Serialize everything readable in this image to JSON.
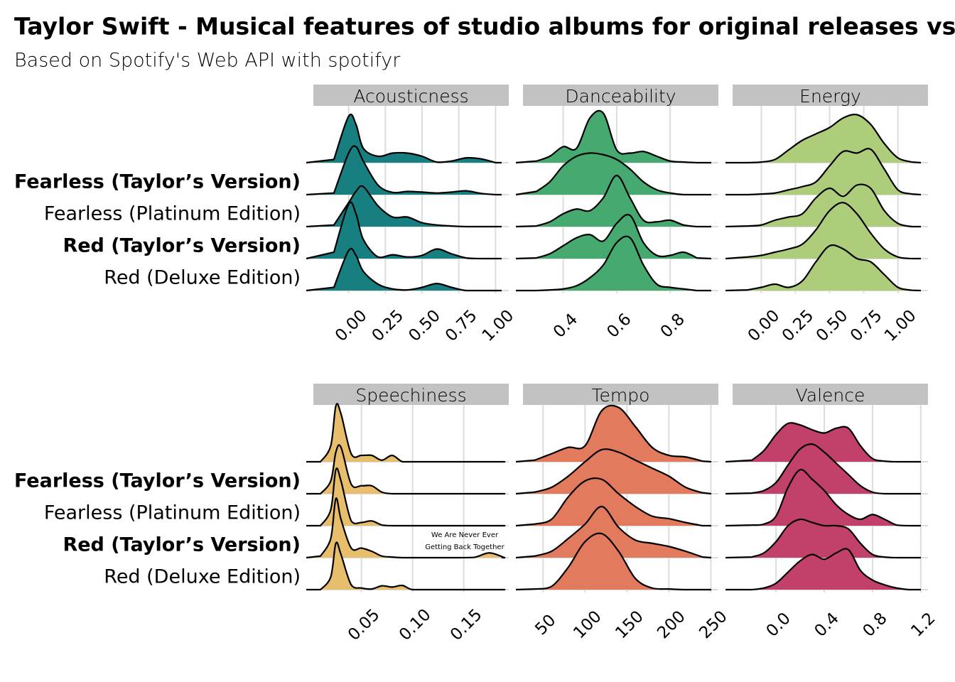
{
  "header": {
    "title": "Taylor Swift - Musical features of studio albums for original releases vs. re",
    "subtitle": "Based on Spotify's Web API with spotifyr"
  },
  "categories": [
    null,
    "Fearless (Taylor’s Version)",
    "Fearless (Platinum Edition)",
    "Red (Taylor’s Version)",
    "Red (Deluxe Edition)"
  ],
  "bold_categories": [
    false,
    true,
    false,
    true,
    false
  ],
  "chart_data": [
    {
      "type": "ridgeline",
      "title": "Acousticness",
      "color": "#177f80",
      "grid": true,
      "xlim": [
        -0.24,
        1.09
      ],
      "xticks": [
        {
          "value": 0,
          "label": "0.00"
        },
        0.25,
        {
          "value": 0.5,
          "label": "0.50"
        },
        0.75,
        {
          "value": 1,
          "label": "1.00"
        }
      ],
      "x": [
        -0.1,
        0,
        0.05,
        0.1,
        0.2,
        0.3,
        0.4,
        0.5,
        0.6,
        0.7,
        0.8,
        0.9,
        1.0
      ],
      "series": [
        {
          "values": [
            0.1,
            1.45,
            1.2,
            0.45,
            0.2,
            0.3,
            0.3,
            0.2,
            0.02,
            0.05,
            0.15,
            0.12,
            0
          ]
        },
        {
          "values": [
            0.05,
            1.3,
            1.5,
            1.05,
            0.3,
            0.07,
            0.1,
            0.08,
            0.05,
            0.08,
            0.12,
            0.04,
            0
          ]
        },
        {
          "values": [
            0.05,
            0.75,
            1.1,
            1.25,
            0.65,
            0.3,
            0.3,
            0.12,
            0.05,
            0.02,
            0,
            0,
            0
          ]
        },
        {
          "values": [
            0.2,
            1.7,
            1.4,
            0.6,
            0.05,
            0.12,
            0.05,
            0.1,
            0.3,
            0.15,
            0.02,
            0,
            0
          ]
        },
        {
          "values": [
            0.1,
            1.25,
            1.1,
            0.6,
            0.2,
            0.05,
            0.02,
            0.1,
            0.22,
            0.1,
            0,
            0,
            0
          ]
        }
      ]
    },
    {
      "type": "ridgeline",
      "title": "Danceability",
      "color": "#46a96f",
      "grid": true,
      "xlim": [
        0.25,
        0.98
      ],
      "xticks": [
        0.4,
        0.6,
        0.8
      ],
      "x": [
        0.3,
        0.35,
        0.4,
        0.45,
        0.5,
        0.55,
        0.6,
        0.65,
        0.7,
        0.75,
        0.8,
        0.85,
        0.9
      ],
      "series": [
        {
          "values": [
            0.05,
            0.2,
            0.5,
            0.45,
            1.4,
            1.55,
            0.4,
            0.3,
            0.35,
            0.2,
            0.05,
            0.02,
            0
          ]
        },
        {
          "values": [
            0.1,
            0.4,
            0.9,
            1.2,
            1.3,
            1.25,
            1.1,
            0.8,
            0.4,
            0.15,
            0.05,
            0,
            0
          ]
        },
        {
          "values": [
            0.02,
            0.15,
            0.4,
            0.55,
            0.5,
            0.9,
            1.6,
            0.9,
            0.2,
            0.15,
            0.2,
            0.05,
            0
          ]
        },
        {
          "values": [
            0.02,
            0.15,
            0.4,
            0.65,
            0.75,
            0.55,
            1.1,
            1.35,
            0.5,
            0.1,
            0.1,
            0.2,
            0.02
          ]
        },
        {
          "values": [
            0,
            0.02,
            0.05,
            0.15,
            0.4,
            0.8,
            1.5,
            1.65,
            0.8,
            0.2,
            0.1,
            0.05,
            0
          ]
        }
      ]
    },
    {
      "type": "ridgeline",
      "title": "Energy",
      "color": "#aecd7a",
      "grid": true,
      "xlim": [
        -0.21,
        1.22
      ],
      "xticks": [
        {
          "value": 0,
          "label": "0.00"
        },
        0.25,
        {
          "value": 0.5,
          "label": "0.50"
        },
        0.75,
        {
          "value": 1,
          "label": "1.00"
        }
      ],
      "x": [
        -0.1,
        0,
        0.1,
        0.2,
        0.3,
        0.4,
        0.5,
        0.6,
        0.7,
        0.8,
        0.9,
        1.0,
        1.1
      ],
      "series": [
        {
          "values": [
            0,
            0.02,
            0.1,
            0.4,
            0.7,
            0.9,
            1.1,
            1.4,
            1.5,
            1.2,
            0.6,
            0.15,
            0.02
          ]
        },
        {
          "values": [
            0,
            0.02,
            0.05,
            0.15,
            0.25,
            0.4,
            0.9,
            1.35,
            1.3,
            1.42,
            0.8,
            0.15,
            0.02
          ]
        },
        {
          "values": [
            0.02,
            0.05,
            0.2,
            0.3,
            0.4,
            0.9,
            1.2,
            0.95,
            1.3,
            1.2,
            0.5,
            0.1,
            0
          ]
        },
        {
          "values": [
            0.05,
            0.1,
            0.2,
            0.3,
            0.45,
            0.9,
            1.5,
            1.75,
            1.4,
            0.8,
            0.3,
            0.05,
            0
          ]
        },
        {
          "values": [
            0.02,
            0.1,
            0.2,
            0.1,
            0.3,
            0.9,
            1.4,
            1.3,
            1.0,
            0.9,
            0.5,
            0.1,
            0.01
          ]
        }
      ]
    },
    {
      "type": "ridgeline",
      "title": "Speechiness",
      "color": "#e6be6c",
      "grid": true,
      "xlim": [
        0.003,
        0.194
      ],
      "xticks": [
        0.05,
        {
          "value": 0.1,
          "label": "0.10"
        },
        0.15
      ],
      "annotation": [
        "We Are Never Ever",
        "Getting Back Together"
      ],
      "x": [
        0.01,
        0.02,
        0.025,
        0.03,
        0.04,
        0.05,
        0.06,
        0.07,
        0.08,
        0.09,
        0.1,
        0.12,
        0.14,
        0.16,
        0.175,
        0.19
      ],
      "series": [
        {
          "values": [
            0,
            0.5,
            1.75,
            1.5,
            0.25,
            0.2,
            0.2,
            0.05,
            0.2,
            0,
            0,
            0,
            0,
            0,
            0,
            0
          ]
        },
        {
          "values": [
            0,
            0.4,
            1.3,
            1.45,
            0.3,
            0.25,
            0.25,
            0.05,
            0,
            0,
            0,
            0,
            0,
            0,
            0,
            0
          ]
        },
        {
          "values": [
            0,
            0.5,
            1.75,
            1.4,
            0.15,
            0.1,
            0.15,
            0.02,
            0,
            0,
            0,
            0,
            0,
            0,
            0,
            0
          ]
        },
        {
          "values": [
            0.05,
            0.6,
            1.85,
            1.2,
            0.3,
            0.3,
            0.2,
            0.05,
            0.02,
            0,
            0,
            0,
            0,
            0.01,
            0.15,
            0
          ]
        },
        {
          "values": [
            0,
            0.4,
            1.45,
            1.1,
            0.15,
            0.05,
            0.02,
            0.12,
            0.08,
            0.13,
            0,
            0,
            0,
            0,
            0,
            0
          ]
        }
      ]
    },
    {
      "type": "ridgeline",
      "title": "Tempo",
      "color": "#e27a5d",
      "grid": true,
      "xlim": [
        26,
        259
      ],
      "xticks": [
        50,
        100,
        150,
        200,
        250
      ],
      "x": [
        40,
        60,
        80,
        100,
        120,
        140,
        160,
        180,
        200,
        220,
        240
      ],
      "series": [
        {
          "values": [
            0.05,
            0.25,
            0.45,
            0.5,
            1.6,
            1.7,
            1.1,
            0.45,
            0.2,
            0.15,
            0.02
          ]
        },
        {
          "values": [
            0.05,
            0.2,
            0.55,
            1.0,
            1.38,
            1.3,
            1.05,
            0.8,
            0.55,
            0.2,
            0.03
          ]
        },
        {
          "values": [
            0.05,
            0.2,
            0.9,
            1.4,
            1.45,
            1.0,
            0.6,
            0.3,
            0.22,
            0.1,
            0
          ]
        },
        {
          "values": [
            0.05,
            0.2,
            0.6,
            1.05,
            1.6,
            0.95,
            0.55,
            0.45,
            0.35,
            0.2,
            0.02
          ]
        },
        {
          "values": [
            0.02,
            0.1,
            0.7,
            1.5,
            1.75,
            1.2,
            0.35,
            0.05,
            0.02,
            0,
            0
          ]
        }
      ]
    },
    {
      "type": "ridgeline",
      "title": "Valence",
      "color": "#c2416a",
      "grid": true,
      "xlim": [
        -0.36,
        1.26
      ],
      "xticks": [
        {
          "value": 0,
          "label": "0.0"
        },
        0.4,
        0.8,
        1.2
      ],
      "x": [
        -0.2,
        -0.1,
        0,
        0.1,
        0.2,
        0.3,
        0.4,
        0.5,
        0.6,
        0.7,
        0.8,
        0.9,
        1.0,
        1.1
      ],
      "series": [
        {
          "values": [
            0.05,
            0.35,
            0.85,
            1.2,
            1.15,
            1.0,
            0.9,
            1.05,
            1.05,
            0.5,
            0.1,
            0.02,
            0,
            0
          ]
        },
        {
          "values": [
            0.02,
            0.1,
            0.35,
            0.9,
            1.4,
            1.55,
            1.3,
            0.95,
            0.6,
            0.25,
            0.05,
            0,
            0,
            0
          ]
        },
        {
          "values": [
            0.02,
            0.05,
            0.3,
            1.2,
            1.75,
            1.45,
            1.1,
            0.65,
            0.35,
            0.2,
            0.35,
            0.2,
            0.02,
            0
          ]
        },
        {
          "values": [
            0.02,
            0.15,
            0.5,
            1.0,
            1.2,
            1.1,
            1.0,
            1.0,
            0.9,
            0.45,
            0.1,
            0.02,
            0,
            0
          ]
        },
        {
          "values": [
            0,
            0.05,
            0.2,
            0.55,
            0.9,
            1.1,
            0.95,
            1.15,
            1.25,
            0.6,
            0.3,
            0.15,
            0.05,
            0
          ]
        }
      ]
    }
  ]
}
